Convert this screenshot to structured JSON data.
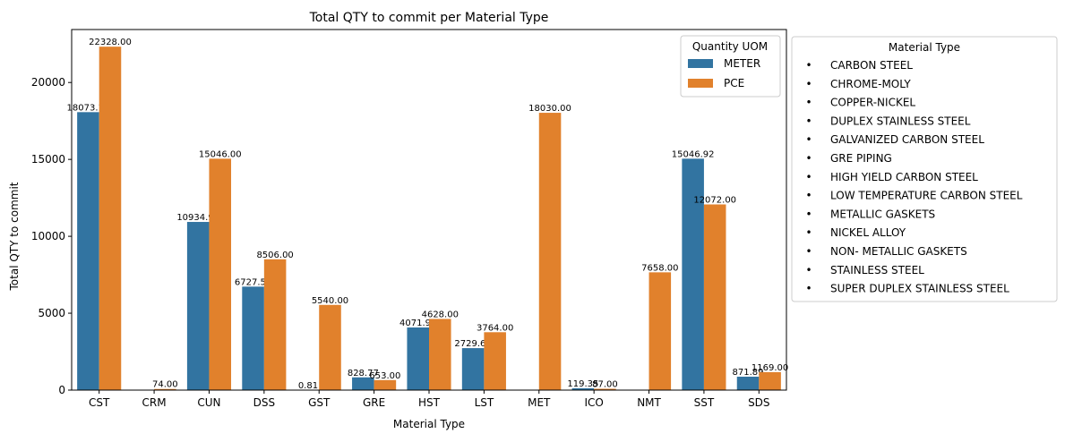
{
  "chart_data": {
    "type": "bar",
    "title": "Total QTY to commit per Material Type",
    "xlabel": "Material Type",
    "ylabel": "Total QTY to commit",
    "categories": [
      "CST",
      "CRM",
      "CUN",
      "DSS",
      "GST",
      "GRE",
      "HST",
      "LST",
      "MET",
      "ICO",
      "NMT",
      "SST",
      "SDS"
    ],
    "series": [
      {
        "name": "METER",
        "color": "#3274a1",
        "values": [
          18073.15,
          null,
          10934.93,
          6727.59,
          0.81,
          828.77,
          4071.91,
          2729.62,
          null,
          119.35,
          null,
          15046.92,
          871.89
        ],
        "labels": [
          "18073.15",
          "",
          "10934.93",
          "6727.59",
          "0.81",
          "828.77",
          "4071.91",
          "2729.62",
          "",
          "119.35",
          "",
          "15046.92",
          "871.89"
        ]
      },
      {
        "name": "PCE",
        "color": "#e1812c",
        "values": [
          22328.0,
          74.0,
          15046.0,
          8506.0,
          5540.0,
          653.0,
          4628.0,
          3764.0,
          18030.0,
          87.0,
          7658.0,
          12072.0,
          1169.0
        ],
        "labels": [
          "22328.00",
          "74.00",
          "15046.00",
          "8506.00",
          "5540.00",
          "653.00",
          "4628.00",
          "3764.00",
          "18030.00",
          "87.00",
          "7658.00",
          "12072.00",
          "1169.00"
        ]
      }
    ],
    "ylim": [
      0,
      23444
    ],
    "yticks": [
      0,
      5000,
      10000,
      15000,
      20000
    ],
    "grid": false,
    "legend_title": "Quantity UOM",
    "legend_position": "top-right"
  },
  "material_legend": {
    "title": "Material Type",
    "bullet": "•",
    "items": [
      "CARBON STEEL",
      "CHROME-MOLY",
      "COPPER-NICKEL",
      "DUPLEX STAINLESS STEEL",
      "GALVANIZED CARBON STEEL",
      "GRE PIPING",
      "HIGH YIELD CARBON STEEL",
      "LOW TEMPERATURE CARBON STEEL",
      "METALLIC GASKETS",
      "NICKEL ALLOY",
      "NON- METALLIC GASKETS",
      "STAINLESS STEEL",
      "SUPER DUPLEX STAINLESS STEEL"
    ]
  }
}
